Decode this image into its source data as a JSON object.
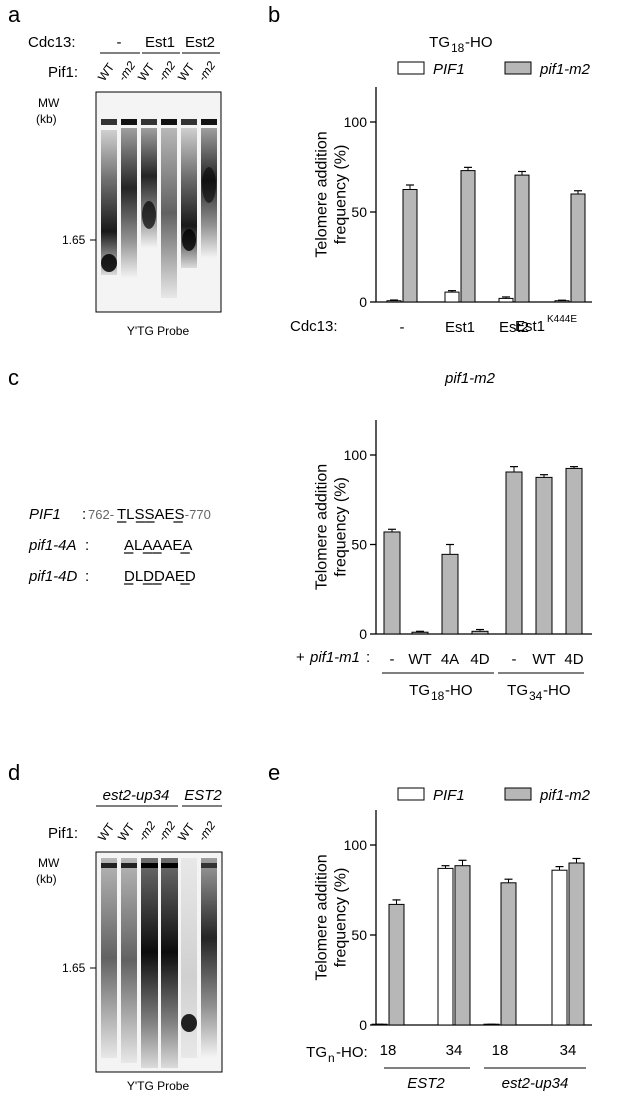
{
  "panels": {
    "a": {
      "label": "a",
      "row1_header": "Cdc13:",
      "row1_groups": [
        "-",
        "Est1",
        "Est2"
      ],
      "row2_header": "Pif1:",
      "lanes": [
        "WT",
        "-m2",
        "WT",
        "-m2",
        "WT",
        "-m2"
      ],
      "mw_label": "MW",
      "mw_unit": "(kb)",
      "mw_marker": "1.65",
      "probe": "Y'TG Probe"
    },
    "b": {
      "label": "b",
      "title_prefix": "TG",
      "title_sub": "18",
      "title_suffix": "-HO",
      "xrow_header": "Cdc13:",
      "est1k_base": "Est1",
      "est1k_sup": "K444E"
    },
    "c": {
      "label": "c",
      "seq": [
        {
          "name": "PIF1",
          "colon": ":",
          "start": "762-",
          "seq": "TLSSAES",
          "end": "-770"
        },
        {
          "name": "pif1-4A",
          "colon": ":",
          "seq": "ALAAAEA"
        },
        {
          "name": "pif1-4D",
          "colon": ":",
          "seq": "DLDDAED"
        }
      ],
      "title": "pif1-m2",
      "xrow_prefix": "+ ",
      "xrow_italic": "pif1-m1",
      "xrow_suffix": ":",
      "group1_prefix": "TG",
      "group1_sub": "18",
      "group1_suffix": "-HO",
      "group2_prefix": "TG",
      "group2_sub": "34",
      "group2_suffix": "-HO"
    },
    "d": {
      "label": "d",
      "group1": "est2-up34",
      "group2": "EST2",
      "row_header": "Pif1:",
      "lanes": [
        "WT",
        "WT",
        "-m2",
        "-m2",
        "WT",
        "-m2"
      ],
      "mw_label": "MW",
      "mw_unit": "(kb)",
      "mw_marker": "1.65",
      "probe": "Y'TG Probe"
    },
    "e": {
      "label": "e",
      "xrow_prefix": "TG",
      "xrow_sub": "n",
      "xrow_suffix": "-HO:",
      "group1": "EST2",
      "group2": "est2-up34"
    }
  },
  "colors": {
    "white_bar": "#ffffff",
    "gray_bar": "#b7b7b7",
    "ink": "#000000"
  },
  "chart_data": [
    {
      "id": "b",
      "type": "bar",
      "title": "TG18-HO",
      "ylabel": "Telomere addition frequency (%)",
      "ylim": [
        0,
        100
      ],
      "yticks": [
        0,
        50,
        100
      ],
      "categories": [
        "-",
        "Est1",
        "Est2",
        "Est1K444E"
      ],
      "series": [
        {
          "name": "PIF1",
          "color": "#ffffff",
          "values": [
            0.7,
            5.5,
            2.0,
            0.7
          ],
          "errors": [
            0.4,
            0.8,
            0.8,
            0.3
          ]
        },
        {
          "name": "pif1-m2",
          "color": "#b7b7b7",
          "values": [
            62.5,
            73,
            70.5,
            60
          ],
          "errors": [
            2.5,
            1.8,
            2.0,
            1.8
          ]
        }
      ]
    },
    {
      "id": "c",
      "type": "bar",
      "title": "pif1-m2",
      "ylabel": "Telomere addition frequency (%)",
      "ylim": [
        0,
        100
      ],
      "yticks": [
        0,
        50,
        100
      ],
      "categories": [
        "-",
        "WT",
        "4A",
        "4D",
        "-",
        "WT",
        "4D"
      ],
      "groups": [
        "TG18-HO",
        "TG18-HO",
        "TG18-HO",
        "TG18-HO",
        "TG34-HO",
        "TG34-HO",
        "TG34-HO"
      ],
      "series": [
        {
          "name": "pif1-m2",
          "color": "#b7b7b7",
          "values": [
            57,
            1,
            44.5,
            1.5,
            90.5,
            87.5,
            92.5
          ],
          "errors": [
            1.5,
            0.5,
            5.5,
            1.0,
            3.0,
            1.5,
            1.0
          ]
        }
      ]
    },
    {
      "id": "e",
      "type": "bar",
      "ylabel": "Telomere addition frequency (%)",
      "ylim": [
        0,
        100
      ],
      "yticks": [
        0,
        50,
        100
      ],
      "categories": [
        "18",
        "34",
        "18",
        "34"
      ],
      "groups": [
        "EST2",
        "EST2",
        "est2-up34",
        "est2-up34"
      ],
      "series": [
        {
          "name": "PIF1",
          "color": "#ffffff",
          "values": [
            0.3,
            87,
            0.3,
            86
          ],
          "errors": [
            0.1,
            1.5,
            0.1,
            2.0
          ]
        },
        {
          "name": "pif1-m2",
          "color": "#b7b7b7",
          "values": [
            67,
            88.5,
            79,
            90
          ],
          "errors": [
            2.5,
            3.0,
            2.0,
            2.5
          ]
        }
      ]
    }
  ]
}
